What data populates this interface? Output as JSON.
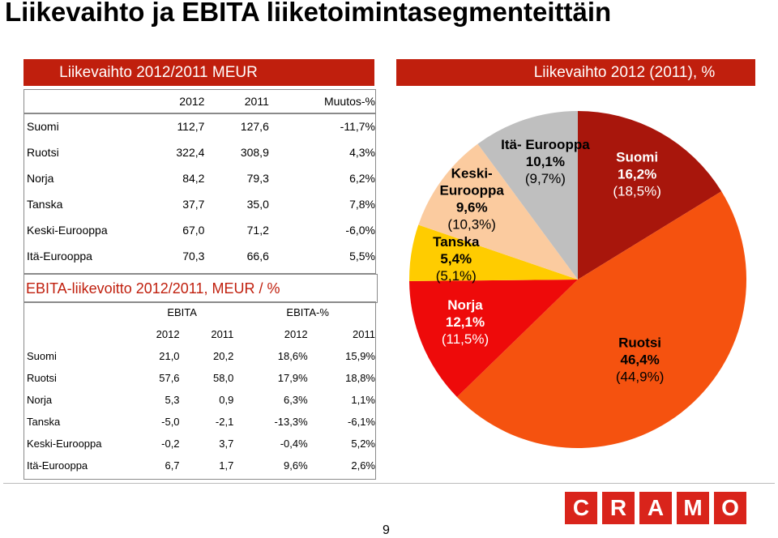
{
  "page_title": "Liikevaihto ja EBITA liiketoimintasegmenteittäin",
  "page_number": "9",
  "logo_letters": [
    "C",
    "R",
    "A",
    "M",
    "O"
  ],
  "colors": {
    "header_bar": "#c01f0d",
    "logo": "#d9241b"
  },
  "revenue_table": {
    "header": "Liikevaihto 2012/2011 MEUR",
    "columns": [
      "2012",
      "2011",
      "Muutos-%"
    ],
    "rows": [
      {
        "label": "Suomi",
        "v2012": "112,7",
        "v2011": "127,6",
        "change": "-11,7%"
      },
      {
        "label": "Ruotsi",
        "v2012": "322,4",
        "v2011": "308,9",
        "change": "4,3%"
      },
      {
        "label": "Norja",
        "v2012": "84,2",
        "v2011": "79,3",
        "change": "6,2%"
      },
      {
        "label": "Tanska",
        "v2012": "37,7",
        "v2011": "35,0",
        "change": "7,8%"
      },
      {
        "label": "Keski-Eurooppa",
        "v2012": "67,0",
        "v2011": "71,2",
        "change": "-6,0%"
      },
      {
        "label": "Itä-Eurooppa",
        "v2012": "70,3",
        "v2011": "66,6",
        "change": "5,5%"
      }
    ]
  },
  "ebita_table": {
    "header": "EBITA-liikevoitto 2012/2011, MEUR / %",
    "group_headers": [
      "EBITA",
      "EBITA-%"
    ],
    "columns": [
      "2012",
      "2011",
      "2012",
      "2011"
    ],
    "rows": [
      {
        "label": "Suomi",
        "e2012": "21,0",
        "e2011": "20,2",
        "p2012": "18,6%",
        "p2011": "15,9%"
      },
      {
        "label": "Ruotsi",
        "e2012": "57,6",
        "e2011": "58,0",
        "p2012": "17,9%",
        "p2011": "18,8%"
      },
      {
        "label": "Norja",
        "e2012": "5,3",
        "e2011": "0,9",
        "p2012": "6,3%",
        "p2011": "1,1%"
      },
      {
        "label": "Tanska",
        "e2012": "-5,0",
        "e2011": "-2,1",
        "p2012": "-13,3%",
        "p2011": "-6,1%"
      },
      {
        "label": "Keski-Eurooppa",
        "e2012": "-0,2",
        "e2011": "3,7",
        "p2012": "-0,4%",
        "p2011": "5,2%"
      },
      {
        "label": "Itä-Eurooppa",
        "e2012": "6,7",
        "e2011": "1,7",
        "p2012": "9,6%",
        "p2011": "2,6%"
      }
    ]
  },
  "chart_data": {
    "type": "pie",
    "title": "Liikevaihto 2012 (2011), %",
    "slices": [
      {
        "name": "Suomi",
        "value": 16.2,
        "value_label": "16,2%",
        "prev_label": "(18,5%)",
        "color": "#a8160c",
        "label_color": "#ffffff"
      },
      {
        "name": "Ruotsi",
        "value": 46.4,
        "value_label": "46,4%",
        "prev_label": "(44,9%)",
        "color": "#f5520f",
        "label_color": "#000000"
      },
      {
        "name": "Norja",
        "value": 12.1,
        "value_label": "12,1%",
        "prev_label": "(11,5%)",
        "color": "#ee0a0a",
        "label_color": "#ffffff"
      },
      {
        "name": "Tanska",
        "value": 5.4,
        "value_label": "5,4%",
        "prev_label": "(5,1%)",
        "color": "#ffcc00",
        "label_color": "#000000"
      },
      {
        "name": "Keski-Eurooppa",
        "display_name": "Keski-\nEurooppa",
        "value": 9.6,
        "value_label": "9,6%",
        "prev_label": "(10,3%)",
        "color": "#fbcb9f",
        "label_color": "#000000"
      },
      {
        "name": "Itä-Eurooppa",
        "display_name": "Itä- Eurooppa",
        "value": 10.1,
        "value_label": "10,1%",
        "prev_label": "(9,7%)",
        "color": "#bfbfbf",
        "label_color": "#000000"
      }
    ]
  }
}
